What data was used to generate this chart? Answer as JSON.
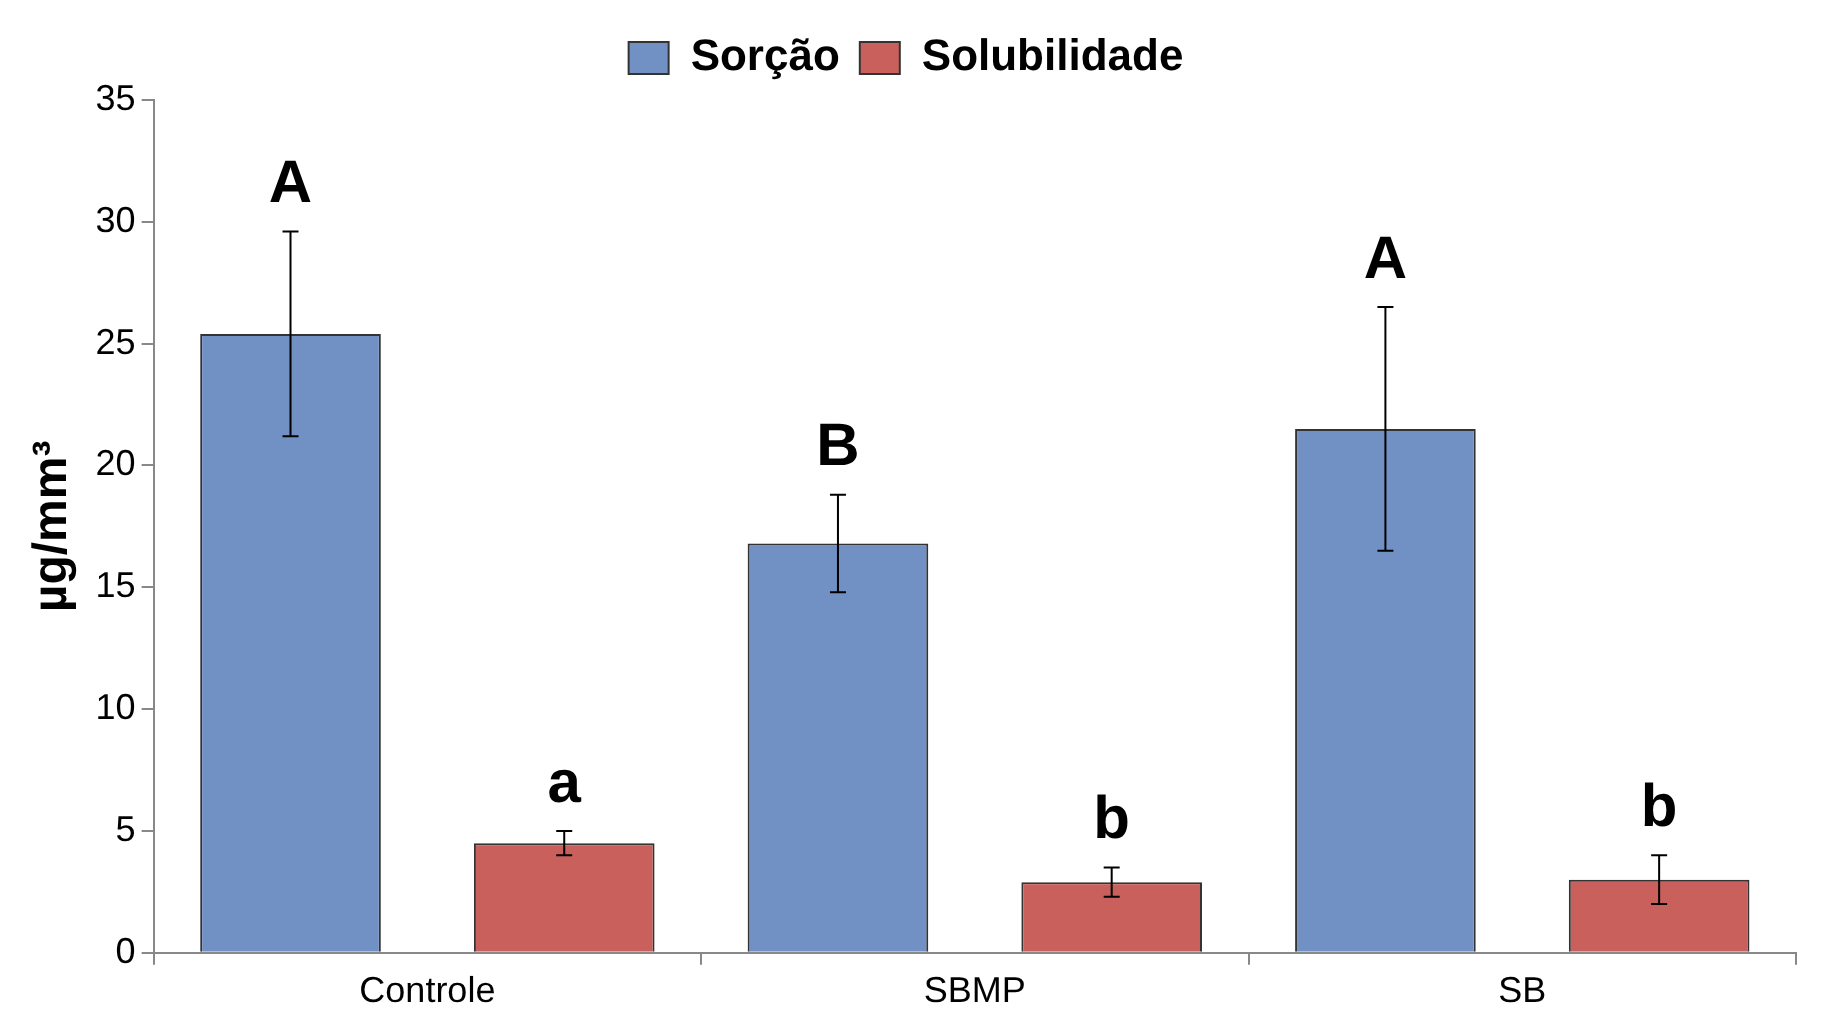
{
  "chart_data": {
    "type": "bar",
    "categories": [
      "Controle",
      "SBMP",
      "SB"
    ],
    "series": [
      {
        "name": "Sorção",
        "color": "#7190c4",
        "values": [
          25.4,
          16.8,
          21.5
        ],
        "errors": [
          4.2,
          2.0,
          5.0
        ]
      },
      {
        "name": "Solubilidade",
        "color": "#c9605c",
        "values": [
          4.5,
          2.9,
          3.0
        ],
        "errors": [
          0.5,
          0.6,
          1.0
        ]
      }
    ],
    "ylabel": "µg/mm³",
    "ylim": [
      0,
      35
    ],
    "yticks": [
      0,
      5,
      10,
      15,
      20,
      25,
      30,
      35
    ],
    "grid": false,
    "legend": "top",
    "annotations": [
      "A",
      "a",
      "B",
      "b",
      "A",
      "b"
    ]
  }
}
